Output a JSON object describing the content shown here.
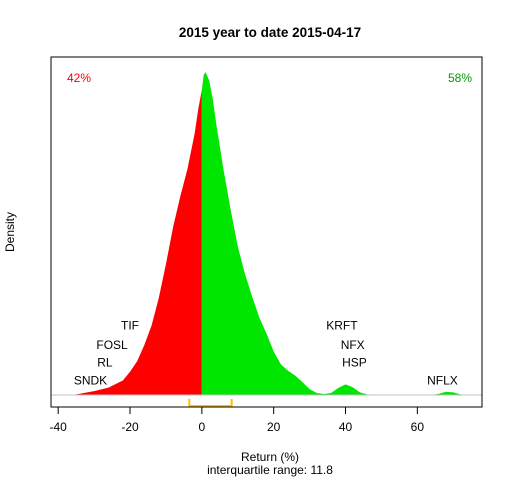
{
  "chart_data": {
    "type": "area",
    "title": "2015  year to date 2015-04-17",
    "xlabel": "Return (%)",
    "ylabel": "Density",
    "subtitle": "interquartile range: 11.8",
    "xlim": [
      -42,
      78
    ],
    "ylim": [
      0,
      1
    ],
    "xticks": [
      -40,
      -20,
      0,
      20,
      40,
      60
    ],
    "split_x": 0,
    "left_pct": "42%",
    "right_pct": "58%",
    "colors": {
      "negative": "#ff0000",
      "positive": "#00e600",
      "iqr": "#ffc000",
      "baseline": "#c0c0c0"
    },
    "iqr": [
      -3.5,
      8.3
    ],
    "density": {
      "x": [
        -36,
        -34,
        -30,
        -26,
        -22,
        -20,
        -18,
        -16,
        -14,
        -12,
        -10,
        -8,
        -6,
        -4,
        -2,
        -1,
        0,
        0.5,
        1,
        2,
        3,
        4,
        6,
        8,
        10,
        12,
        14,
        16,
        18,
        20,
        22,
        24,
        26,
        28,
        30,
        32,
        34,
        36,
        38,
        40,
        42,
        44,
        46,
        48,
        50,
        52,
        54,
        56,
        58,
        60,
        62,
        64,
        66,
        68,
        70,
        72,
        74
      ],
      "y": [
        0.0,
        0.004,
        0.012,
        0.023,
        0.045,
        0.072,
        0.105,
        0.155,
        0.215,
        0.3,
        0.405,
        0.52,
        0.615,
        0.7,
        0.81,
        0.885,
        0.945,
        0.99,
        1.0,
        0.975,
        0.92,
        0.84,
        0.7,
        0.575,
        0.46,
        0.375,
        0.305,
        0.24,
        0.19,
        0.135,
        0.095,
        0.075,
        0.06,
        0.04,
        0.018,
        0.006,
        0.003,
        0.006,
        0.022,
        0.033,
        0.024,
        0.008,
        0.002,
        0.0,
        0.0,
        0.0,
        0.0,
        0.0,
        0.0,
        0.0,
        0.0,
        0.0,
        0.004,
        0.01,
        0.008,
        0.002,
        0.0
      ]
    },
    "annotations": [
      {
        "label": "TIF",
        "x": -20,
        "y": 0.215
      },
      {
        "label": "FOSL",
        "x": -25,
        "y": 0.155
      },
      {
        "label": "RL",
        "x": -27,
        "y": 0.1
      },
      {
        "label": "SNDK",
        "x": -31,
        "y": 0.045
      },
      {
        "label": "KRFT",
        "x": 39,
        "y": 0.215
      },
      {
        "label": "NFX",
        "x": 42,
        "y": 0.155
      },
      {
        "label": "HSP",
        "x": 42.5,
        "y": 0.1
      },
      {
        "label": "NFLX",
        "x": 67,
        "y": 0.045
      }
    ]
  }
}
